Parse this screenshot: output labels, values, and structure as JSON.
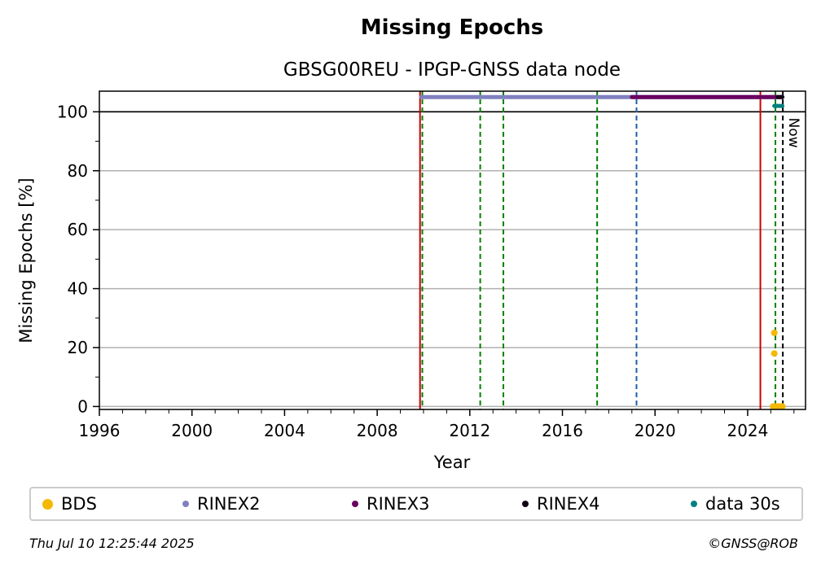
{
  "chart_data": {
    "type": "scatter",
    "title": "Missing Epochs",
    "subtitle": "GBSG00REU - IPGP-GNSS data node",
    "xlabel": "Year",
    "ylabel": "Missing Epochs [%]",
    "xlim": [
      1996,
      2026.5
    ],
    "ylim": [
      -1,
      107
    ],
    "x_ticks": [
      1996,
      2000,
      2004,
      2008,
      2012,
      2016,
      2020,
      2024
    ],
    "y_ticks": [
      0,
      20,
      40,
      60,
      80,
      100
    ],
    "grid": "y",
    "reference_line": 100,
    "series": [
      {
        "name": "BDS",
        "color": "#f5b800",
        "style": "points",
        "points": [
          [
            2025.15,
            25
          ],
          [
            2025.15,
            18
          ],
          [
            2025.1,
            0
          ],
          [
            2025.2,
            0
          ],
          [
            2025.3,
            0
          ],
          [
            2025.4,
            0
          ],
          [
            2025.5,
            0
          ]
        ]
      },
      {
        "name": "RINEX2",
        "color": "#8080c0",
        "style": "band",
        "range": [
          2009.9,
          2025.5
        ],
        "y": 105
      },
      {
        "name": "RINEX3",
        "color": "#6a0060",
        "style": "band",
        "range": [
          2019.0,
          2025.5
        ],
        "y": 105
      },
      {
        "name": "RINEX4",
        "color": "#150018",
        "style": "band",
        "range": [
          2025.3,
          2025.5
        ],
        "y": 105
      },
      {
        "name": "data 30s",
        "color": "#008080",
        "style": "band",
        "range": [
          2025.15,
          2025.5
        ],
        "y": 102
      }
    ],
    "vertical_lines": [
      {
        "x": 2009.85,
        "color": "#cc0000",
        "style": "solid"
      },
      {
        "x": 2009.95,
        "color": "#008000",
        "style": "dashed"
      },
      {
        "x": 2012.45,
        "color": "#008000",
        "style": "dashed"
      },
      {
        "x": 2013.45,
        "color": "#008000",
        "style": "dashed"
      },
      {
        "x": 2017.5,
        "color": "#008000",
        "style": "dashed"
      },
      {
        "x": 2019.2,
        "color": "#1f5fa8",
        "style": "dashed"
      },
      {
        "x": 2024.55,
        "color": "#cc0000",
        "style": "solid"
      },
      {
        "x": 2025.2,
        "color": "#008000",
        "style": "dashed"
      },
      {
        "x": 2025.52,
        "color": "#000000",
        "style": "dashed"
      }
    ],
    "now_label": "Now",
    "now_x": 2025.52,
    "legend_position": "bottom"
  },
  "footer": {
    "timestamp": "Thu Jul 10 12:25:44 2025",
    "copyright": "©GNSS@ROB"
  }
}
